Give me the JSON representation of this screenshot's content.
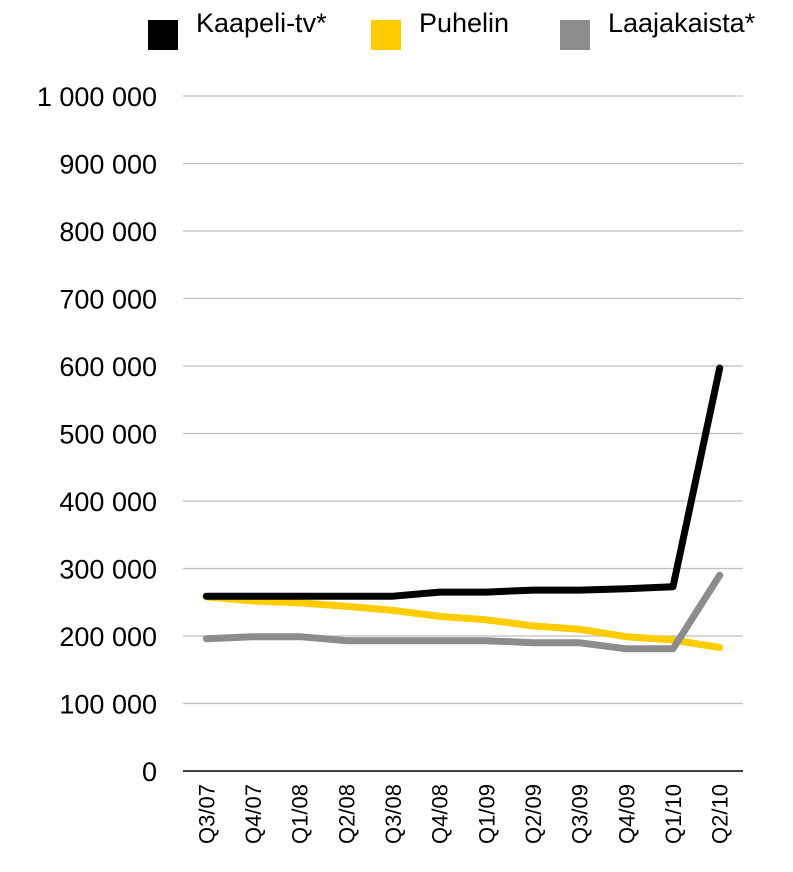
{
  "chart_data": {
    "type": "line",
    "categories": [
      "Q3/07",
      "Q4/07",
      "Q1/08",
      "Q2/08",
      "Q3/08",
      "Q4/08",
      "Q1/09",
      "Q2/09",
      "Q3/09",
      "Q4/09",
      "Q1/10",
      "Q2/10"
    ],
    "series": [
      {
        "name": "Kaapeli-tv*",
        "color": "#000000",
        "values": [
          259000,
          259000,
          259000,
          259000,
          259000,
          265000,
          265000,
          268000,
          268000,
          270000,
          273000,
          597000
        ]
      },
      {
        "name": "Puhelin",
        "color": "#FFCC00",
        "values": [
          258000,
          252000,
          249000,
          244000,
          238000,
          229000,
          224000,
          215000,
          210000,
          199000,
          194000,
          183000
        ]
      },
      {
        "name": "Laajakaista*",
        "color": "#8C8C8C",
        "values": [
          196000,
          199000,
          199000,
          193000,
          193000,
          193000,
          193000,
          190000,
          190000,
          181000,
          181000,
          290000
        ]
      }
    ],
    "ylim": [
      0,
      1000000
    ],
    "yticks": [
      "0",
      "100 000",
      "200 000",
      "300 000",
      "400 000",
      "500 000",
      "600 000",
      "700 000",
      "800 000",
      "900 000",
      "1 000 000"
    ],
    "grid": true,
    "legend_position": "top"
  }
}
